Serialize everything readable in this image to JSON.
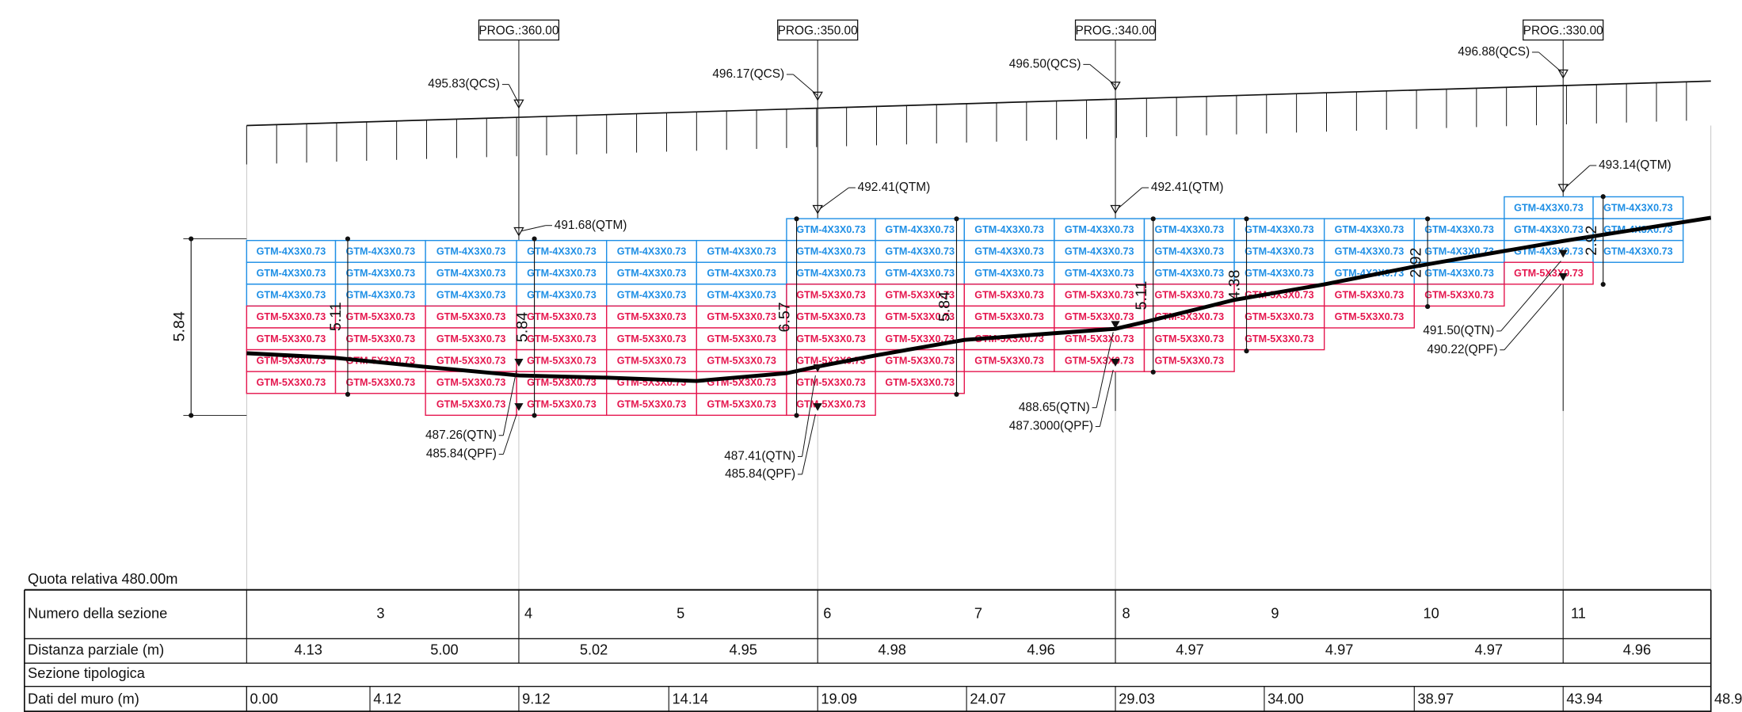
{
  "progressive": [
    "PROG.:360.00",
    "PROG.:350.00",
    "PROG.:340.00",
    "PROG.:330.00"
  ],
  "elevations": {
    "qcs": [
      "495.83(QCS)",
      "496.17(QCS)",
      "496.50(QCS)",
      "496.88(QCS)"
    ],
    "qtm": [
      "491.68(QTM)",
      "492.41(QTM)",
      "492.41(QTM)",
      "493.14(QTM)"
    ],
    "qtn": [
      "487.26(QTN)",
      "487.41(QTN)",
      "488.65(QTN)",
      "491.50(QTN)"
    ],
    "qpf": [
      "485.84(QPF)",
      "485.84(QPF)",
      "487.3000(QPF)",
      "490.22(QPF)"
    ]
  },
  "dimensions": {
    "total": "5.84",
    "heights": [
      "5.11",
      "5.84",
      "6.57",
      "5.84",
      "5.11",
      "4.38",
      "2.92",
      "2.92"
    ]
  },
  "gabions": {
    "colors": {
      "GTM-4X3X0.73": "#1f8fe5",
      "GTM-5X3X0.73": "#e5174f"
    },
    "rows": [
      [
        null,
        null,
        null,
        null,
        null,
        null,
        null,
        null,
        null,
        null,
        null,
        null,
        null,
        null,
        "GTM-4X3X0.73",
        "GTM-4X3X0.73"
      ],
      [
        null,
        null,
        null,
        null,
        null,
        null,
        "GTM-4X3X0.73",
        "GTM-4X3X0.73",
        "GTM-4X3X0.73",
        "GTM-4X3X0.73",
        "GTM-4X3X0.73",
        "GTM-4X3X0.73",
        "GTM-4X3X0.73",
        "GTM-4X3X0.73",
        "GTM-4X3X0.73",
        "GTM-4X3X0.73"
      ],
      [
        "GTM-4X3X0.73",
        "GTM-4X3X0.73",
        "GTM-4X3X0.73",
        "GTM-4X3X0.73",
        "GTM-4X3X0.73",
        "GTM-4X3X0.73",
        "GTM-4X3X0.73",
        "GTM-4X3X0.73",
        "GTM-4X3X0.73",
        "GTM-4X3X0.73",
        "GTM-4X3X0.73",
        "GTM-4X3X0.73",
        "GTM-4X3X0.73",
        "GTM-4X3X0.73",
        "GTM-4X3X0.73",
        "GTM-4X3X0.73"
      ],
      [
        "GTM-4X3X0.73",
        "GTM-4X3X0.73",
        "GTM-4X3X0.73",
        "GTM-4X3X0.73",
        "GTM-4X3X0.73",
        "GTM-4X3X0.73",
        "GTM-4X3X0.73",
        "GTM-4X3X0.73",
        "GTM-4X3X0.73",
        "GTM-4X3X0.73",
        "GTM-4X3X0.73",
        "GTM-4X3X0.73",
        "GTM-4X3X0.73",
        "GTM-4X3X0.73",
        "GTM-5X3X0.73",
        null
      ],
      [
        "GTM-4X3X0.73",
        "GTM-4X3X0.73",
        "GTM-4X3X0.73",
        "GTM-4X3X0.73",
        "GTM-4X3X0.73",
        "GTM-4X3X0.73",
        "GTM-5X3X0.73",
        "GTM-5X3X0.73",
        "GTM-5X3X0.73",
        "GTM-5X3X0.73",
        "GTM-5X3X0.73",
        "GTM-5X3X0.73",
        "GTM-5X3X0.73",
        "GTM-5X3X0.73",
        null,
        null
      ],
      [
        "GTM-5X3X0.73",
        "GTM-5X3X0.73",
        "GTM-5X3X0.73",
        "GTM-5X3X0.73",
        "GTM-5X3X0.73",
        "GTM-5X3X0.73",
        "GTM-5X3X0.73",
        "GTM-5X3X0.73",
        "GTM-5X3X0.73",
        "GTM-5X3X0.73",
        "GTM-5X3X0.73",
        "GTM-5X3X0.73",
        "GTM-5X3X0.73",
        null,
        null,
        null
      ],
      [
        "GTM-5X3X0.73",
        "GTM-5X3X0.73",
        "GTM-5X3X0.73",
        "GTM-5X3X0.73",
        "GTM-5X3X0.73",
        "GTM-5X3X0.73",
        "GTM-5X3X0.73",
        "GTM-5X3X0.73",
        "GTM-5X3X0.73",
        "GTM-5X3X0.73",
        "GTM-5X3X0.73",
        "GTM-5X3X0.73",
        null,
        null,
        null,
        null
      ],
      [
        "GTM-5X3X0.73",
        "GTM-5X3X0.73",
        "GTM-5X3X0.73",
        "GTM-5X3X0.73",
        "GTM-5X3X0.73",
        "GTM-5X3X0.73",
        "GTM-5X3X0.73",
        "GTM-5X3X0.73",
        "GTM-5X3X0.73",
        "GTM-5X3X0.73",
        "GTM-5X3X0.73",
        null,
        null,
        null,
        null,
        null
      ],
      [
        "GTM-5X3X0.73",
        "GTM-5X3X0.73",
        "GTM-5X3X0.73",
        "GTM-5X3X0.73",
        "GTM-5X3X0.73",
        "GTM-5X3X0.73",
        "GTM-5X3X0.73",
        "GTM-5X3X0.73",
        null,
        null,
        null,
        null,
        null,
        null,
        null,
        null
      ],
      [
        null,
        null,
        "GTM-5X3X0.73",
        "GTM-5X3X0.73",
        "GTM-5X3X0.73",
        "GTM-5X3X0.73",
        "GTM-5X3X0.73",
        null,
        null,
        null,
        null,
        null,
        null,
        null,
        null,
        null
      ]
    ]
  },
  "table": {
    "title": "Quota relativa 480.00m",
    "sections": {
      "label": "Numero della sezione",
      "values": [
        "3",
        "4",
        "5",
        "6",
        "7",
        "8",
        "9",
        "10",
        "11"
      ]
    },
    "distances": {
      "label": "Distanza parziale (m)",
      "values": [
        "4.13",
        "5.00",
        "5.02",
        "4.95",
        "4.98",
        "4.96",
        "4.97",
        "4.97",
        "4.97",
        "4.96"
      ]
    },
    "typology": {
      "label": "Sezione tipologica"
    },
    "wall": {
      "label": "Dati del muro (m)",
      "values": [
        "0.00",
        "4.12",
        "9.12",
        "14.14",
        "19.09",
        "24.07",
        "29.03",
        "34.00",
        "38.97",
        "43.94",
        "48.9"
      ]
    }
  }
}
